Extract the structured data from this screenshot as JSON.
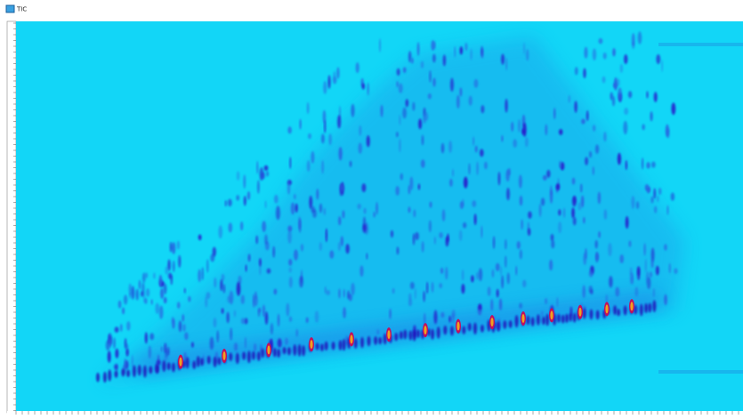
{
  "window": {
    "title": "TIC"
  }
}
